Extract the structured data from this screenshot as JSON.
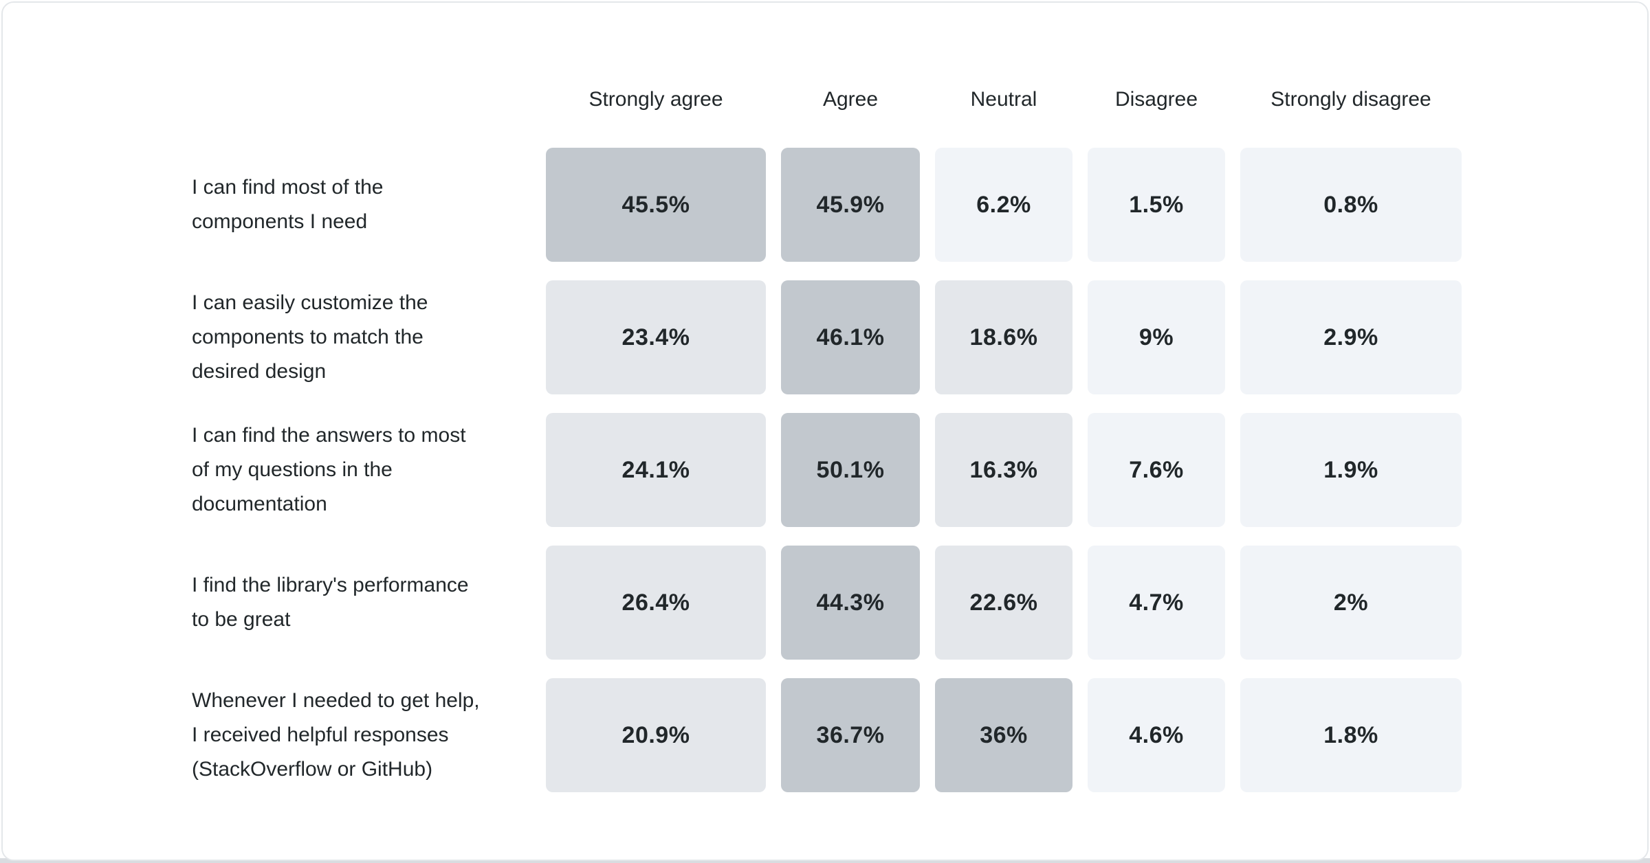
{
  "chart_data": {
    "type": "heatmap",
    "columns": [
      "Strongly agree",
      "Agree",
      "Neutral",
      "Disagree",
      "Strongly disagree"
    ],
    "rows": [
      {
        "label": "I can find most of the components I need",
        "label_lines": [
          "I can find most of the",
          "components I need"
        ],
        "values": [
          45.5,
          45.9,
          6.2,
          1.5,
          0.8
        ]
      },
      {
        "label": "I can easily customize the components to match the desired design",
        "label_lines": [
          "I can easily customize the",
          "components to match the",
          "desired design"
        ],
        "values": [
          23.4,
          46.1,
          18.6,
          9,
          2.9
        ]
      },
      {
        "label": "I can find the answers to most of my questions in the documentation",
        "label_lines": [
          "I can find the answers to most",
          "of my questions in the",
          "documentation"
        ],
        "values": [
          24.1,
          50.1,
          16.3,
          7.6,
          1.9
        ]
      },
      {
        "label": "I find the library's performance to be great",
        "label_lines": [
          "I find the library's performance",
          "to be great"
        ],
        "values": [
          26.4,
          44.3,
          22.6,
          4.7,
          2
        ]
      },
      {
        "label": "Whenever I needed to get help, I received helpful responses (StackOverflow or GitHub)",
        "label_lines": [
          "Whenever I needed to get help,",
          "I received helpful responses",
          "(StackOverflow or GitHub)"
        ],
        "values": [
          20.9,
          36.7,
          36,
          4.6,
          1.8
        ]
      }
    ],
    "value_suffix": "%",
    "value_format": "one-decimal-or-integer",
    "legend_position": "none",
    "grid": "off",
    "colors": {
      "text": "#21272a",
      "cell_high": "#c2c8ce",
      "cell_mid": "#e4e7eb",
      "cell_low": "#f1f4f8",
      "card_border": "#e4e7ea",
      "bottom_strip": "#d9dce0"
    },
    "color_buckets": [
      {
        "min_value": 30,
        "color": "#c2c8ce"
      },
      {
        "min_value": 10,
        "color": "#e4e7eb"
      },
      {
        "min_value": 0,
        "color": "#f1f4f8"
      }
    ]
  }
}
